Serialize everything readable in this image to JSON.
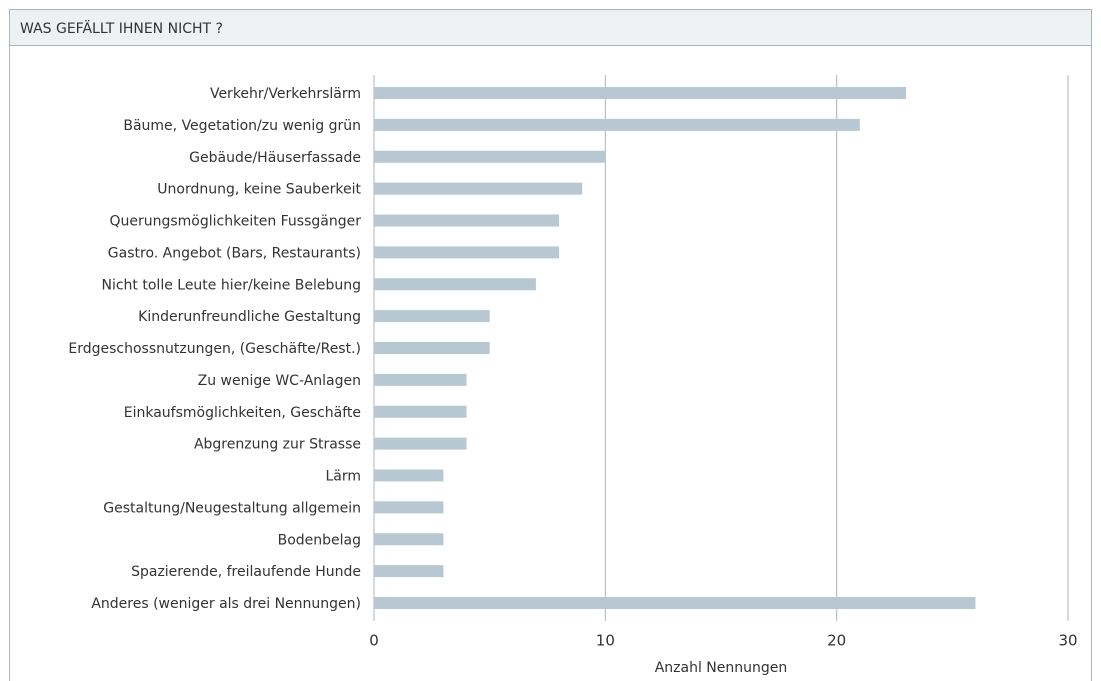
{
  "chart_data": {
    "type": "bar",
    "orientation": "horizontal",
    "title": "WAS GEFÄLLT IHNEN NICHT ?",
    "categories": [
      "Verkehr/Verkehrslärm",
      "Bäume, Vegetation/zu wenig grün",
      "Gebäude/Häuserfassade",
      "Unordnung, keine Sauberkeit",
      "Querungsmöglichkeiten Fussgänger",
      "Gastro. Angebot (Bars, Restaurants)",
      "Nicht tolle Leute hier/keine Belebung",
      "Kinderunfreundliche Gestaltung",
      "Erdgeschossnutzungen, (Geschäfte/Rest.)",
      "Zu wenige WC-Anlagen",
      "Einkaufsmöglichkeiten, Geschäfte",
      "Abgrenzung zur Strasse",
      "Lärm",
      "Gestaltung/Neugestaltung allgemein",
      "Bodenbelag",
      "Spazierende, freilaufende Hunde",
      "Anderes (weniger als drei Nennungen)"
    ],
    "values": [
      23,
      21,
      10,
      9,
      8,
      8,
      7,
      5,
      5,
      4,
      4,
      4,
      3,
      3,
      3,
      3,
      26
    ],
    "color": "#b8c8d2",
    "xlabel": "Anzahl Nennungen",
    "xlim": [
      0,
      30
    ],
    "xticks": [
      0,
      10,
      20,
      30
    ],
    "grid": true
  }
}
